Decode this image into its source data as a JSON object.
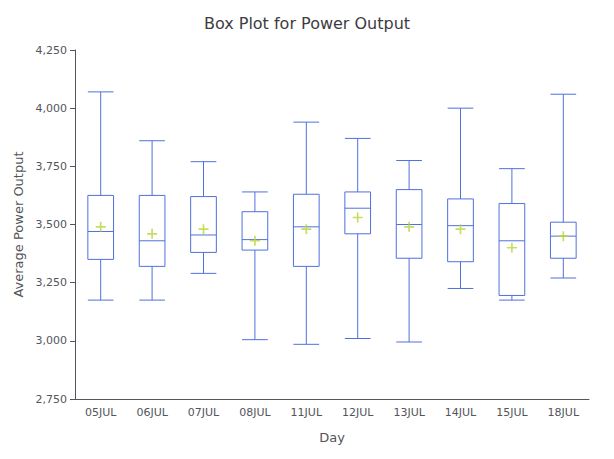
{
  "chart_data": {
    "type": "box",
    "title": "Box Plot for Power Output",
    "xlabel": "Day",
    "ylabel": "Average Power Output",
    "categories": [
      "05JUL",
      "06JUL",
      "07JUL",
      "08JUL",
      "11JUL",
      "12JUL",
      "13JUL",
      "14JUL",
      "15JUL",
      "18JUL"
    ],
    "values": [
      [
        3175,
        3350,
        3470,
        3625,
        4070
      ],
      [
        3175,
        3320,
        3430,
        3625,
        3860
      ],
      [
        3290,
        3380,
        3455,
        3620,
        3770
      ],
      [
        3005,
        3390,
        3435,
        3555,
        3640
      ],
      [
        2985,
        3320,
        3490,
        3630,
        3940
      ],
      [
        3010,
        3460,
        3570,
        3640,
        3870
      ],
      [
        2995,
        3355,
        3500,
        3650,
        3775
      ],
      [
        3225,
        3340,
        3495,
        3610,
        4000
      ],
      [
        3175,
        3195,
        3430,
        3590,
        3740
      ],
      [
        3270,
        3355,
        3450,
        3510,
        4060
      ]
    ],
    "means": [
      3490,
      3460,
      3480,
      3430,
      3480,
      3530,
      3490,
      3480,
      3400,
      3450
    ],
    "marker": "plus",
    "ylim": [
      2750,
      4250
    ],
    "yticks": [
      2750,
      3000,
      3250,
      3500,
      3750,
      4000,
      4250
    ],
    "grid": false
  }
}
